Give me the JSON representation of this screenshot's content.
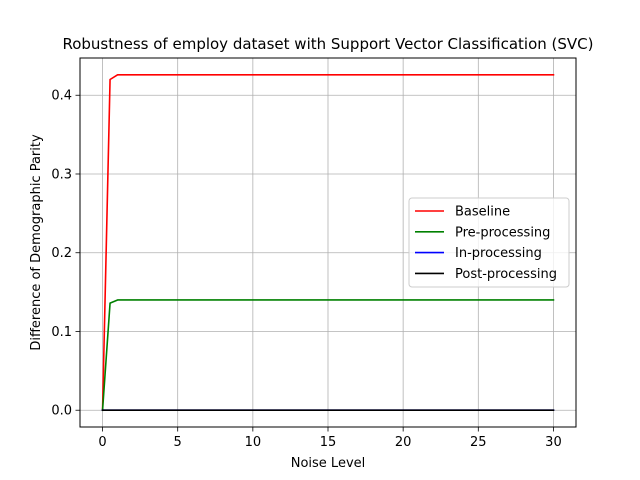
{
  "chart_data": {
    "type": "line",
    "title": "Robustness of employ dataset with Support Vector Classification (SVC)",
    "xlabel": "Noise Level",
    "ylabel": "Difference of Demographic Parity",
    "xlim": [
      -1.5,
      31.5
    ],
    "ylim": [
      -0.0213,
      0.4473
    ],
    "xticks": [
      0,
      5,
      10,
      15,
      20,
      25,
      30
    ],
    "yticks": [
      0.0,
      0.1,
      0.2,
      0.3,
      0.4
    ],
    "xtick_labels": [
      "0",
      "5",
      "10",
      "15",
      "20",
      "25",
      "30"
    ],
    "ytick_labels": [
      "0.0",
      "0.1",
      "0.2",
      "0.3",
      "0.4"
    ],
    "grid": true,
    "legend_position": "center-right",
    "series": [
      {
        "name": "Baseline",
        "color": "#ff0000",
        "x": [
          0,
          0.5,
          1,
          1.5,
          2,
          30
        ],
        "y": [
          0.0,
          0.42,
          0.426,
          0.426,
          0.426,
          0.426
        ]
      },
      {
        "name": "Pre-processing",
        "color": "#008000",
        "x": [
          0,
          0.5,
          1,
          1.5,
          2,
          30
        ],
        "y": [
          0.0,
          0.136,
          0.14,
          0.14,
          0.14,
          0.14
        ]
      },
      {
        "name": "In-processing",
        "color": "#0000ff",
        "x": [
          0,
          30
        ],
        "y": [
          0.0,
          0.0
        ]
      },
      {
        "name": "Post-processing",
        "color": "#000000",
        "x": [
          0,
          30
        ],
        "y": [
          0.0,
          0.0
        ]
      }
    ]
  }
}
